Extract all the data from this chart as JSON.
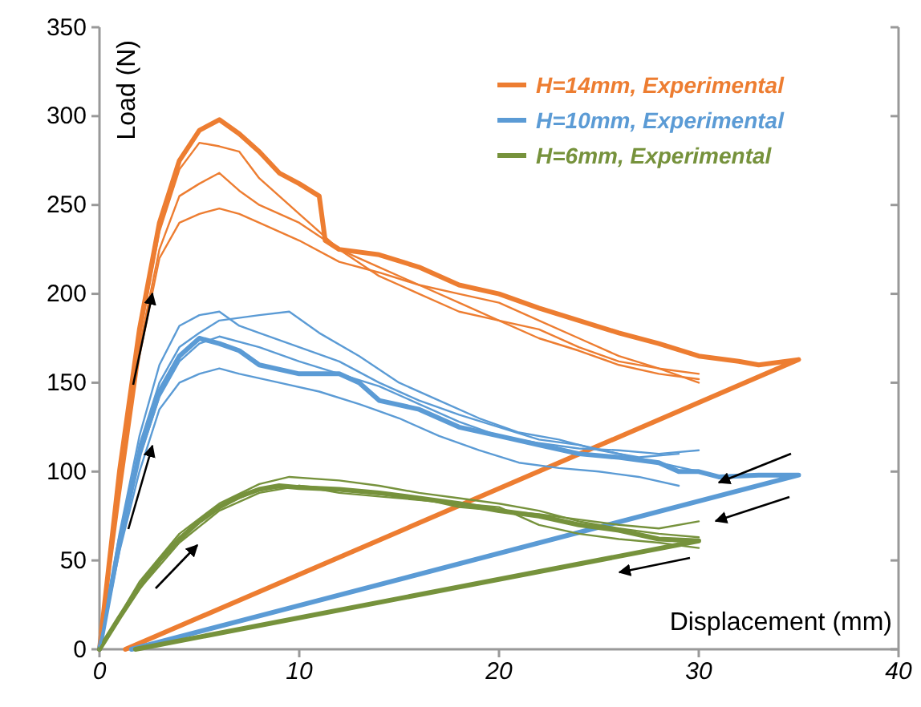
{
  "chart_data": {
    "type": "line",
    "xlabel": "Displacement (mm)",
    "ylabel": "Load (N)",
    "xlim": [
      0,
      40
    ],
    "ylim": [
      0,
      350
    ],
    "xticks": [
      0,
      10,
      20,
      30,
      40
    ],
    "yticks": [
      0,
      50,
      100,
      150,
      200,
      250,
      300,
      350
    ],
    "grid": false,
    "legend": "top right",
    "marker": "none",
    "line_style": "solid",
    "series": [
      {
        "name": "H=14mm, Experimental",
        "color": "#ed7d31",
        "x": [
          0,
          1,
          2,
          3,
          4,
          5,
          6,
          7,
          8,
          9,
          10,
          11,
          11.3,
          12,
          14,
          16,
          18,
          20,
          22,
          24,
          26,
          28,
          30,
          32,
          33,
          35,
          1.3
        ],
        "values": [
          0,
          100,
          180,
          240,
          275,
          292,
          298,
          290,
          280,
          268,
          262,
          255,
          230,
          225,
          222,
          215,
          205,
          200,
          192,
          185,
          178,
          172,
          165,
          162,
          160,
          163,
          0
        ]
      },
      {
        "name": "H=10mm, Experimental",
        "color": "#5b9bd5",
        "x": [
          0,
          1,
          2,
          3,
          4,
          5,
          6,
          7,
          8,
          10,
          12,
          13,
          14,
          16,
          18,
          20,
          22,
          24,
          26,
          28,
          29,
          30,
          31,
          33,
          35,
          1.6
        ],
        "values": [
          0,
          60,
          110,
          145,
          165,
          175,
          172,
          168,
          160,
          155,
          155,
          150,
          140,
          135,
          125,
          120,
          115,
          110,
          108,
          105,
          100,
          100,
          97,
          98,
          98,
          0
        ]
      },
      {
        "name": "H=6mm, Experimental",
        "color": "#76923c",
        "x": [
          0,
          1,
          2,
          3,
          4,
          5,
          6,
          7,
          8,
          9,
          10,
          12,
          14,
          16,
          18,
          20,
          22,
          24,
          26,
          28,
          30,
          1.8
        ],
        "values": [
          0,
          18,
          35,
          50,
          62,
          72,
          80,
          86,
          90,
          92,
          91,
          90,
          88,
          85,
          82,
          78,
          75,
          70,
          67,
          62,
          61,
          0
        ]
      },
      {
        "color": "#ed7d31",
        "x": [
          0,
          1,
          2,
          3,
          4,
          5,
          6,
          7,
          8,
          10,
          12,
          14,
          16,
          18,
          20,
          22,
          24,
          26,
          28,
          30
        ],
        "values": [
          0,
          95,
          175,
          235,
          270,
          285,
          283,
          280,
          265,
          245,
          225,
          215,
          205,
          200,
          195,
          185,
          175,
          165,
          158,
          155
        ]
      },
      {
        "color": "#ed7d31",
        "x": [
          0,
          1,
          2,
          3,
          4,
          5,
          6,
          7,
          8,
          10,
          12,
          14,
          16,
          18,
          20,
          22,
          24,
          26,
          28,
          30
        ],
        "values": [
          0,
          90,
          170,
          225,
          255,
          262,
          268,
          258,
          250,
          240,
          225,
          210,
          200,
          190,
          185,
          180,
          170,
          162,
          158,
          150
        ]
      },
      {
        "color": "#ed7d31",
        "x": [
          0,
          1,
          2,
          3,
          4,
          5,
          6,
          7,
          8,
          10,
          12,
          14,
          16,
          18,
          20,
          22,
          24,
          26,
          28,
          30
        ],
        "values": [
          0,
          85,
          165,
          220,
          240,
          245,
          248,
          245,
          240,
          230,
          218,
          212,
          205,
          195,
          185,
          175,
          168,
          160,
          155,
          152
        ]
      },
      {
        "color": "#5b9bd5",
        "x": [
          0,
          1,
          2,
          3,
          4,
          5,
          6,
          7,
          8,
          10,
          12,
          14,
          16,
          18,
          20,
          22,
          24,
          26,
          28,
          30
        ],
        "values": [
          0,
          65,
          120,
          160,
          182,
          188,
          190,
          182,
          178,
          170,
          162,
          150,
          140,
          132,
          125,
          118,
          115,
          110,
          105,
          100
        ]
      },
      {
        "color": "#5b9bd5",
        "x": [
          0,
          1,
          2,
          3,
          4,
          5,
          6,
          8,
          9.5,
          11,
          13,
          15,
          17,
          19,
          21,
          23,
          25,
          27,
          29
        ],
        "values": [
          0,
          60,
          115,
          150,
          170,
          178,
          185,
          188,
          190,
          178,
          165,
          150,
          140,
          130,
          122,
          118,
          112,
          108,
          110
        ]
      },
      {
        "color": "#5b9bd5",
        "x": [
          0,
          1,
          2,
          3,
          4,
          5,
          6,
          7,
          9,
          11,
          13,
          15,
          17,
          19,
          21,
          23,
          25,
          27,
          29
        ],
        "values": [
          0,
          55,
          100,
          135,
          150,
          155,
          158,
          155,
          150,
          145,
          138,
          130,
          120,
          112,
          105,
          102,
          100,
          97,
          92
        ]
      },
      {
        "color": "#5b9bd5",
        "x": [
          0,
          1,
          2,
          3,
          4,
          5,
          6,
          8,
          10,
          12,
          14,
          16,
          18,
          20,
          22,
          24,
          26,
          28,
          30
        ],
        "values": [
          0,
          58,
          108,
          142,
          162,
          172,
          176,
          170,
          162,
          155,
          148,
          138,
          128,
          120,
          116,
          113,
          112,
          110,
          112
        ]
      },
      {
        "color": "#76923c",
        "x": [
          0,
          2,
          4,
          6,
          8,
          9.5,
          12,
          14,
          16,
          18,
          20,
          22,
          24,
          26,
          28,
          30
        ],
        "values": [
          0,
          38,
          65,
          82,
          93,
          97,
          95,
          92,
          88,
          85,
          82,
          78,
          72,
          68,
          65,
          63
        ]
      },
      {
        "color": "#76923c",
        "x": [
          0,
          2,
          4,
          6,
          8,
          10,
          12,
          14,
          16,
          18,
          20,
          22,
          24,
          26,
          28,
          30
        ],
        "values": [
          0,
          36,
          63,
          80,
          90,
          92,
          90,
          88,
          85,
          80,
          78,
          76,
          73,
          70,
          68,
          72
        ]
      },
      {
        "color": "#76923c",
        "x": [
          0,
          2,
          4,
          6,
          8,
          10,
          12,
          14,
          16,
          18,
          20,
          22,
          24,
          26,
          28,
          30
        ],
        "values": [
          0,
          34,
          60,
          78,
          88,
          92,
          88,
          86,
          84,
          82,
          80,
          70,
          65,
          62,
          60,
          57
        ]
      }
    ]
  }
}
